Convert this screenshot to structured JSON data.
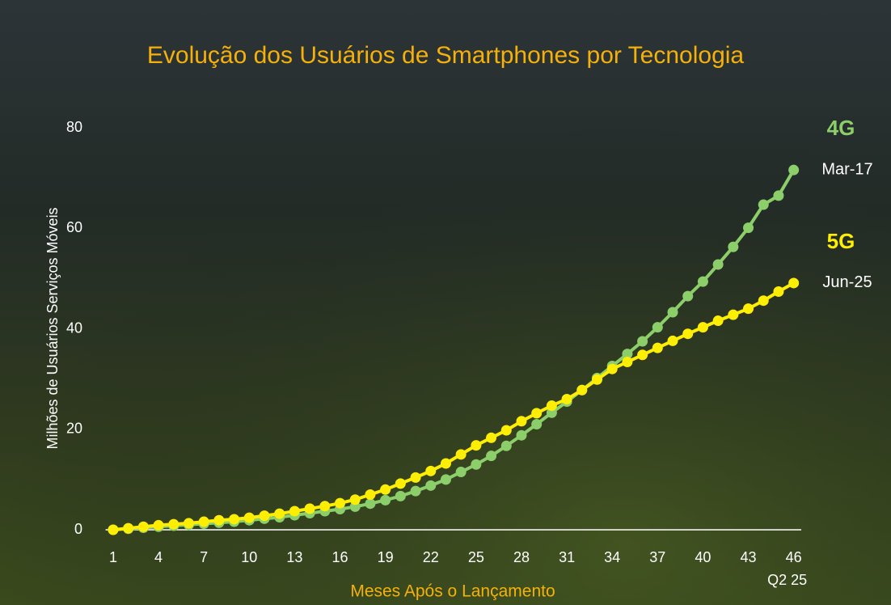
{
  "chart_data": {
    "type": "line",
    "title": "Evolução dos Usuários de Smartphones por Tecnologia",
    "x_label": "Meses Após o Lançamento",
    "y_label": "Milhões de Usuários Serviços Móveis",
    "x_note": "Q2 25",
    "x": [
      1,
      2,
      3,
      4,
      5,
      6,
      7,
      8,
      9,
      10,
      11,
      12,
      13,
      14,
      15,
      16,
      17,
      18,
      19,
      20,
      21,
      22,
      23,
      24,
      25,
      26,
      27,
      28,
      29,
      30,
      31,
      32,
      33,
      34,
      35,
      36,
      37,
      38,
      39,
      40,
      41,
      42,
      43,
      44,
      45,
      46
    ],
    "xlim": [
      0.5,
      46.5
    ],
    "xticks": [
      1,
      4,
      7,
      10,
      13,
      16,
      19,
      22,
      25,
      28,
      31,
      34,
      37,
      40,
      43,
      46
    ],
    "ylim": [
      0,
      80
    ],
    "yticks": [
      0,
      20,
      40,
      60,
      80
    ],
    "series": [
      {
        "name": "4G",
        "end_label": "Mar-17",
        "color": "#8ccf6a",
        "values": [
          0,
          0.2,
          0.4,
          0.6,
          0.8,
          1.0,
          1.2,
          1.4,
          1.6,
          1.9,
          2.2,
          2.5,
          2.9,
          3.3,
          3.7,
          4.1,
          4.6,
          5.2,
          5.9,
          6.7,
          7.7,
          8.8,
          10.0,
          11.5,
          13.0,
          14.7,
          16.7,
          18.8,
          21.0,
          23.3,
          25.5,
          27.8,
          30.2,
          32.6,
          35.0,
          37.5,
          40.3,
          43.3,
          46.5,
          49.4,
          52.8,
          56.3,
          60.1,
          64.7,
          66.5,
          71.6
        ]
      },
      {
        "name": "5G",
        "end_label": "Jun-25",
        "color": "#ffee00",
        "values": [
          0,
          0.3,
          0.6,
          0.9,
          1.1,
          1.3,
          1.6,
          1.9,
          2.1,
          2.4,
          2.8,
          3.2,
          3.7,
          4.2,
          4.7,
          5.3,
          6.0,
          7.0,
          8.0,
          9.2,
          10.4,
          11.7,
          13.2,
          15.0,
          16.8,
          18.3,
          19.8,
          21.6,
          23.2,
          24.7,
          26.0,
          27.8,
          29.9,
          32.0,
          33.4,
          34.8,
          36.2,
          37.6,
          39.0,
          40.3,
          41.6,
          42.8,
          44.0,
          45.6,
          47.4,
          49.1
        ]
      }
    ]
  }
}
